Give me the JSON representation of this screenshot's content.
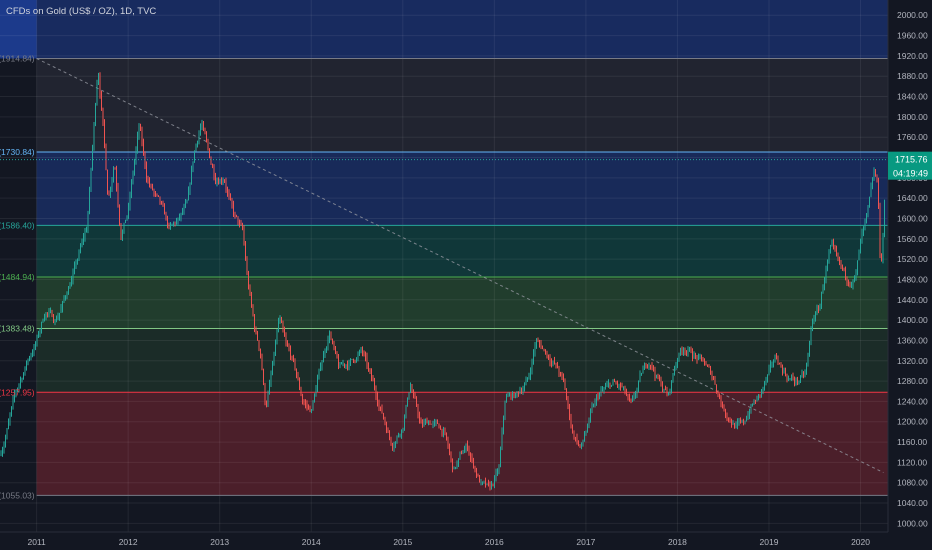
{
  "header": {
    "title": "CFDs on Gold (US$ / OZ), 1D, TVC"
  },
  "price_tag": {
    "price": "1715.76",
    "countdown": "04:19:49"
  },
  "chart_data": {
    "type": "candlestick",
    "title": "CFDs on Gold (US$ / OZ), 1D, TVC",
    "ylim": [
      983,
      2030
    ],
    "y_ticks": [
      "2000.00",
      "1960.00",
      "1920.00",
      "1880.00",
      "1840.00",
      "1800.00",
      "1760.00",
      "1720.00",
      "1680.00",
      "1640.00",
      "1600.00",
      "1560.00",
      "1520.00",
      "1480.00",
      "1440.00",
      "1400.00",
      "1360.00",
      "1320.00",
      "1280.00",
      "1240.00",
      "1200.00",
      "1160.00",
      "1120.00",
      "1080.00",
      "1040.00",
      "1000.00"
    ],
    "x_ticks": [
      "2011",
      "2012",
      "2013",
      "2014",
      "2015",
      "2016",
      "2017",
      "2018",
      "2019",
      "2020"
    ],
    "xlim": [
      2010.6,
      2020.3
    ],
    "last_price": 1715.76,
    "fib_levels": [
      {
        "label": "1(1914.84)",
        "ratio": 1,
        "price": 1914.84,
        "color": "#787b86"
      },
      {
        "label": "0.786(1730.84)",
        "ratio": 0.786,
        "price": 1730.84,
        "color": "#64b5f6"
      },
      {
        "label": "0.618(1586.40)",
        "ratio": 0.618,
        "price": 1586.4,
        "color": "#26a69a"
      },
      {
        "label": "0.5(1484.94)",
        "ratio": 0.5,
        "price": 1484.94,
        "color": "#4caf50"
      },
      {
        "label": "0.382(1383.48)",
        "ratio": 0.382,
        "price": 1383.48,
        "color": "#81c784"
      },
      {
        "label": "0.236(1257.95)",
        "ratio": 0.236,
        "price": 1257.95,
        "color": "#f23645"
      },
      {
        "label": "0(1055.03)",
        "ratio": 0,
        "price": 1055.03,
        "color": "#787b86"
      }
    ],
    "fib_zones": [
      {
        "from": 1914.84,
        "to": 2030,
        "color": "#2962ff",
        "opacity": 0.28
      },
      {
        "from": 1730.84,
        "to": 1914.84,
        "color": "#787b86",
        "opacity": 0.14
      },
      {
        "from": 1586.4,
        "to": 1730.84,
        "color": "#2962ff",
        "opacity": 0.25
      },
      {
        "from": 1484.94,
        "to": 1586.4,
        "color": "#089981",
        "opacity": 0.25
      },
      {
        "from": 1383.48,
        "to": 1484.94,
        "color": "#4caf50",
        "opacity": 0.25
      },
      {
        "from": 1257.95,
        "to": 1383.48,
        "color": "#4caf50",
        "opacity": 0.14
      },
      {
        "from": 1055.03,
        "to": 1257.95,
        "color": "#f23645",
        "opacity": 0.25
      }
    ],
    "fib_x_start": 2011.0,
    "trendline": {
      "from": [
        2011.0,
        1914.84
      ],
      "to": [
        2020.25,
        1100
      ]
    },
    "price_path": [
      [
        2010.6,
        1135
      ],
      [
        2010.75,
        1240
      ],
      [
        2010.9,
        1320
      ],
      [
        2011.0,
        1360
      ],
      [
        2011.1,
        1420
      ],
      [
        2011.2,
        1400
      ],
      [
        2011.3,
        1440
      ],
      [
        2011.45,
        1520
      ],
      [
        2011.55,
        1580
      ],
      [
        2011.62,
        1760
      ],
      [
        2011.67,
        1900
      ],
      [
        2011.72,
        1800
      ],
      [
        2011.78,
        1640
      ],
      [
        2011.85,
        1720
      ],
      [
        2011.92,
        1580
      ],
      [
        2012.0,
        1620
      ],
      [
        2012.12,
        1780
      ],
      [
        2012.2,
        1680
      ],
      [
        2012.35,
        1620
      ],
      [
        2012.45,
        1570
      ],
      [
        2012.55,
        1590
      ],
      [
        2012.65,
        1620
      ],
      [
        2012.72,
        1720
      ],
      [
        2012.8,
        1790
      ],
      [
        2012.88,
        1720
      ],
      [
        2012.95,
        1680
      ],
      [
        2013.05,
        1690
      ],
      [
        2013.15,
        1610
      ],
      [
        2013.25,
        1570
      ],
      [
        2013.3,
        1480
      ],
      [
        2013.38,
        1380
      ],
      [
        2013.45,
        1330
      ],
      [
        2013.5,
        1230
      ],
      [
        2013.58,
        1310
      ],
      [
        2013.65,
        1400
      ],
      [
        2013.72,
        1340
      ],
      [
        2013.8,
        1310
      ],
      [
        2013.9,
        1240
      ],
      [
        2014.0,
        1220
      ],
      [
        2014.08,
        1290
      ],
      [
        2014.2,
        1380
      ],
      [
        2014.3,
        1300
      ],
      [
        2014.45,
        1320
      ],
      [
        2014.55,
        1340
      ],
      [
        2014.65,
        1280
      ],
      [
        2014.75,
        1230
      ],
      [
        2014.88,
        1160
      ],
      [
        2015.0,
        1200
      ],
      [
        2015.08,
        1280
      ],
      [
        2015.2,
        1190
      ],
      [
        2015.3,
        1200
      ],
      [
        2015.45,
        1180
      ],
      [
        2015.55,
        1100
      ],
      [
        2015.7,
        1150
      ],
      [
        2015.85,
        1080
      ],
      [
        2015.95,
        1060
      ],
      [
        2016.05,
        1100
      ],
      [
        2016.12,
        1240
      ],
      [
        2016.25,
        1250
      ],
      [
        2016.38,
        1290
      ],
      [
        2016.45,
        1360
      ],
      [
        2016.55,
        1340
      ],
      [
        2016.65,
        1320
      ],
      [
        2016.75,
        1280
      ],
      [
        2016.85,
        1180
      ],
      [
        2016.95,
        1150
      ],
      [
        2017.05,
        1210
      ],
      [
        2017.15,
        1250
      ],
      [
        2017.3,
        1270
      ],
      [
        2017.4,
        1260
      ],
      [
        2017.5,
        1220
      ],
      [
        2017.6,
        1280
      ],
      [
        2017.7,
        1320
      ],
      [
        2017.8,
        1280
      ],
      [
        2017.9,
        1250
      ],
      [
        2018.0,
        1330
      ],
      [
        2018.08,
        1350
      ],
      [
        2018.2,
        1330
      ],
      [
        2018.3,
        1310
      ],
      [
        2018.4,
        1280
      ],
      [
        2018.5,
        1230
      ],
      [
        2018.62,
        1200
      ],
      [
        2018.72,
        1190
      ],
      [
        2018.8,
        1230
      ],
      [
        2018.9,
        1250
      ],
      [
        2019.0,
        1290
      ],
      [
        2019.08,
        1320
      ],
      [
        2019.2,
        1290
      ],
      [
        2019.3,
        1280
      ],
      [
        2019.4,
        1290
      ],
      [
        2019.48,
        1400
      ],
      [
        2019.55,
        1420
      ],
      [
        2019.62,
        1500
      ],
      [
        2019.68,
        1540
      ],
      [
        2019.75,
        1500
      ],
      [
        2019.85,
        1470
      ],
      [
        2019.95,
        1490
      ],
      [
        2020.0,
        1550
      ],
      [
        2020.08,
        1600
      ],
      [
        2020.15,
        1680
      ],
      [
        2020.19,
        1650
      ],
      [
        2020.22,
        1480
      ],
      [
        2020.26,
        1620
      ],
      [
        2020.3,
        1715
      ]
    ]
  }
}
